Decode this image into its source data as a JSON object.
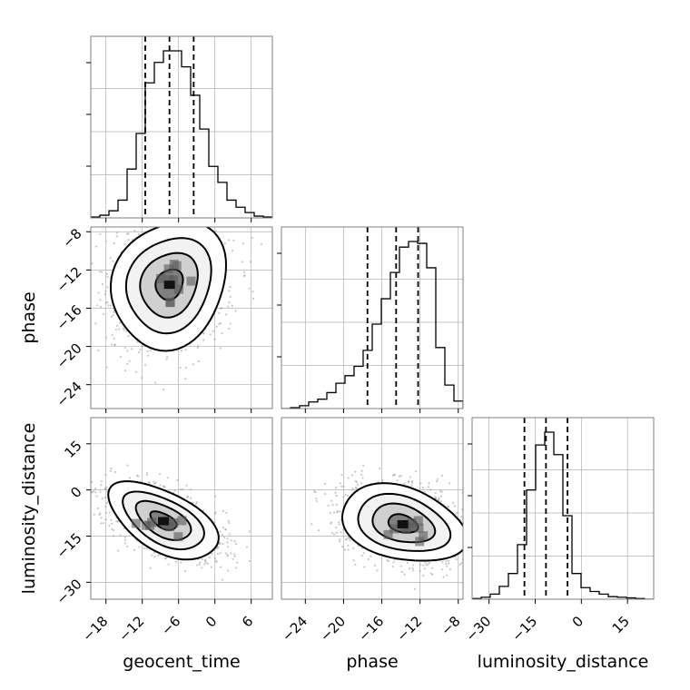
{
  "chart_data": {
    "type": "corner",
    "parameters": [
      "geocent_time",
      "phase",
      "luminosity_distance"
    ],
    "grid": true,
    "colors": {
      "line": "#000000",
      "grid": "#b0b0b0",
      "scatter": "#9a9a9a"
    },
    "axes": {
      "geocent_time": {
        "range": [
          -20.5,
          9.5
        ],
        "ticks": [
          -18,
          -12,
          -6,
          0,
          6
        ],
        "tick_labels": [
          "−18",
          "−12",
          "−6",
          "0",
          "6"
        ]
      },
      "phase": {
        "range": [
          -26.5,
          -7.5
        ],
        "ticks": [
          -24,
          -20,
          -16,
          -12,
          -8
        ],
        "tick_labels": [
          "−24",
          "−20",
          "−16",
          "−12",
          "−8"
        ]
      },
      "luminosity_distance": {
        "range": [
          -35.5,
          23.5
        ],
        "ticks": [
          -30,
          -15,
          0,
          15
        ],
        "tick_labels": [
          "−30",
          "−15",
          "0",
          "15"
        ]
      }
    },
    "marginals": [
      {
        "param": "geocent_time",
        "quantiles": [
          -11.5,
          -7.5,
          -3.5
        ],
        "bin_edges": [
          -20.5,
          -19,
          -17.5,
          -16,
          -14.5,
          -13,
          -11.5,
          -10,
          -8.5,
          -7,
          -5.5,
          -4,
          -2.5,
          -1,
          0.5,
          2,
          3.5,
          5,
          6.5,
          8,
          9.5
        ],
        "counts": [
          1,
          3,
          8,
          20,
          55,
          95,
          152,
          175,
          188,
          188,
          170,
          138,
          100,
          58,
          40,
          20,
          12,
          6,
          2,
          1
        ]
      },
      {
        "param": "phase",
        "quantiles": [
          -17.5,
          -14.5,
          -12.2
        ],
        "bin_edges": [
          -26.5,
          -25.55,
          -24.6,
          -23.65,
          -22.7,
          -21.75,
          -20.8,
          -19.85,
          -18.9,
          -17.95,
          -17,
          -16.05,
          -15.1,
          -14.15,
          -13.2,
          -12.25,
          -11.3,
          -10.35,
          -9.4,
          -8.45,
          -7.5
        ],
        "counts": [
          0,
          1,
          3,
          7,
          10,
          17,
          27,
          35,
          45,
          62,
          90,
          117,
          145,
          172,
          178,
          176,
          150,
          65,
          25,
          8
        ]
      },
      {
        "param": "luminosity_distance",
        "quantiles": [
          -18.5,
          -11.5,
          -4.5
        ],
        "bin_edges": [
          -35.5,
          -32.55,
          -29.6,
          -26.65,
          -23.7,
          -20.75,
          -17.8,
          -14.85,
          -11.9,
          -8.95,
          -6,
          -3.05,
          -0.1,
          2.85,
          5.8,
          8.75,
          11.7,
          14.65,
          17.6,
          20.55,
          23.5
        ],
        "counts": [
          1,
          3,
          8,
          20,
          40,
          85,
          170,
          240,
          260,
          225,
          130,
          40,
          18,
          12,
          8,
          4,
          3,
          2,
          1,
          0
        ]
      }
    ],
    "joints": [
      {
        "x": "geocent_time",
        "y": "phase",
        "center": [
          -7.5,
          -13.5
        ],
        "sd": [
          4.5,
          3.2
        ],
        "corr": 0.15
      },
      {
        "x": "geocent_time",
        "y": "luminosity_distance",
        "center": [
          -8.5,
          -10.0
        ],
        "sd": [
          4.3,
          6.0
        ],
        "corr": -0.55
      },
      {
        "x": "phase",
        "y": "luminosity_distance",
        "center": [
          -13.8,
          -11.0
        ],
        "sd": [
          3.1,
          6.0
        ],
        "corr": -0.3
      }
    ]
  }
}
